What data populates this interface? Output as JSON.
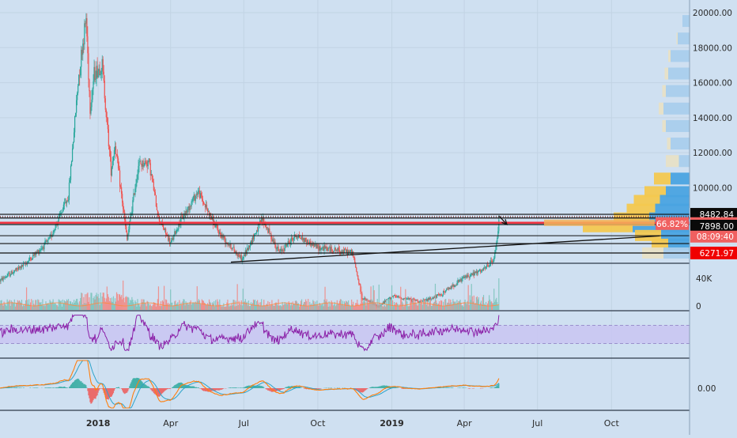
{
  "chart_data": {
    "type": "candlestick",
    "main_panel": {
      "y_scale": "linear",
      "ylim": [
        4700,
        20300
      ],
      "y_ticks": [
        {
          "value": 20000,
          "label": "20000.00"
        },
        {
          "value": 18000,
          "label": "18000.00"
        },
        {
          "value": 16000,
          "label": "16000.00"
        },
        {
          "value": 14000,
          "label": "14000.00"
        },
        {
          "value": 12000,
          "label": "12000.00"
        },
        {
          "value": 10000,
          "label": "10000.00"
        }
      ],
      "price_path": [
        [
          "2017-09-01",
          4700
        ],
        [
          "2017-10-01",
          5600
        ],
        [
          "2017-11-01",
          7000
        ],
        [
          "2017-11-25",
          9500
        ],
        [
          "2017-12-08",
          16500
        ],
        [
          "2017-12-17",
          19700
        ],
        [
          "2017-12-22",
          14500
        ],
        [
          "2017-12-27",
          16500
        ],
        [
          "2018-01-06",
          17000
        ],
        [
          "2018-01-17",
          11000
        ],
        [
          "2018-01-22",
          12500
        ],
        [
          "2018-02-06",
          7000
        ],
        [
          "2018-02-20",
          11300
        ],
        [
          "2018-03-05",
          11500
        ],
        [
          "2018-03-17",
          8300
        ],
        [
          "2018-04-01",
          6800
        ],
        [
          "2018-04-12",
          8000
        ],
        [
          "2018-05-05",
          9800
        ],
        [
          "2018-05-30",
          7500
        ],
        [
          "2018-06-29",
          5900
        ],
        [
          "2018-07-24",
          8200
        ],
        [
          "2018-08-14",
          6300
        ],
        [
          "2018-09-04",
          7300
        ],
        [
          "2018-09-30",
          6600
        ],
        [
          "2018-11-13",
          6300
        ],
        [
          "2018-11-25",
          3700
        ],
        [
          "2018-12-15",
          3200
        ],
        [
          "2019-01-01",
          3800
        ],
        [
          "2019-02-08",
          3500
        ],
        [
          "2019-03-01",
          3850
        ],
        [
          "2019-04-02",
          4900
        ],
        [
          "2019-04-25",
          5300
        ],
        [
          "2019-05-08",
          5900
        ],
        [
          "2019-05-12",
          7100
        ],
        [
          "2019-05-14",
          8270
        ]
      ],
      "horizontal_levels": [
        {
          "value": 8482.84,
          "label": "8482.84",
          "color": "#000000"
        },
        {
          "value": 8270.0,
          "label": "8270.00",
          "color": "#000000"
        },
        {
          "value": 7998.0,
          "label": "7998.00",
          "color": "#f23645"
        },
        {
          "value": 7898.0,
          "label": "7898.00",
          "color": "#000000"
        },
        {
          "value": 6271.97,
          "label": "6271.97",
          "color": "#ff0000"
        }
      ],
      "badges": {
        "percent": "66.82%",
        "countdown": "08:09:40"
      },
      "trendline": {
        "from": [
          "2018-06-15",
          5750
        ],
        "to": [
          "2019-11-30",
          7250
        ]
      },
      "arrow": {
        "from": [
          "2019-05-14",
          8400
        ],
        "to": [
          "2019-05-24",
          7900
        ]
      },
      "volume_profile": [
        {
          "price": 19500,
          "up": 0.0,
          "down": 0.06
        },
        {
          "price": 18500,
          "up": 0.01,
          "down": 0.1
        },
        {
          "price": 17500,
          "up": 0.02,
          "down": 0.16
        },
        {
          "price": 16500,
          "up": 0.03,
          "down": 0.18
        },
        {
          "price": 15500,
          "up": 0.03,
          "down": 0.2
        },
        {
          "price": 14500,
          "up": 0.04,
          "down": 0.22
        },
        {
          "price": 13500,
          "up": 0.03,
          "down": 0.2
        },
        {
          "price": 12500,
          "up": 0.03,
          "down": 0.16
        },
        {
          "price": 11500,
          "up": 0.11,
          "down": 0.09
        },
        {
          "price": 10500,
          "up": 0.14,
          "down": 0.16
        },
        {
          "price": 9750,
          "up": 0.18,
          "down": 0.2
        },
        {
          "price": 9250,
          "up": 0.22,
          "down": 0.25
        },
        {
          "price": 8750,
          "up": 0.24,
          "down": 0.29
        },
        {
          "price": 8250,
          "up": 0.3,
          "down": 0.34
        },
        {
          "price": 7750,
          "up": 0.42,
          "down": 0.48
        },
        {
          "price": 7250,
          "up": 0.22,
          "down": 0.24
        },
        {
          "price": 6750,
          "up": 0.14,
          "down": 0.18
        },
        {
          "price": 6250,
          "up": 0.18,
          "down": 0.22
        }
      ]
    },
    "volume_panel": {
      "tick_labels": [
        "40K",
        "0"
      ]
    },
    "rsi_panel": {
      "band": [
        30,
        70
      ],
      "range": [
        0,
        100
      ]
    },
    "macd_panel": {
      "tick_label": "0.00"
    },
    "x_axis": {
      "ticks": [
        {
          "date": "2018-01-01",
          "label": "2018"
        },
        {
          "date": "2018-04-01",
          "label": "Apr"
        },
        {
          "date": "2018-07-01",
          "label": "Jul"
        },
        {
          "date": "2018-10-01",
          "label": "Oct"
        },
        {
          "date": "2019-01-01",
          "label": "2019"
        },
        {
          "date": "2019-04-01",
          "label": "Apr"
        },
        {
          "date": "2019-07-01",
          "label": "Jul"
        },
        {
          "date": "2019-10-01",
          "label": "Oct"
        }
      ],
      "range": [
        "2017-09-01",
        "2020-01-06"
      ]
    },
    "colors": {
      "up": "#26a69a",
      "down": "#ef5350",
      "rsi": "#8b20a8",
      "macd": "#ff7f0e",
      "signal": "#2da3c9",
      "profile_up": "#f3c850",
      "profile_down": "#4aa3e0"
    }
  }
}
